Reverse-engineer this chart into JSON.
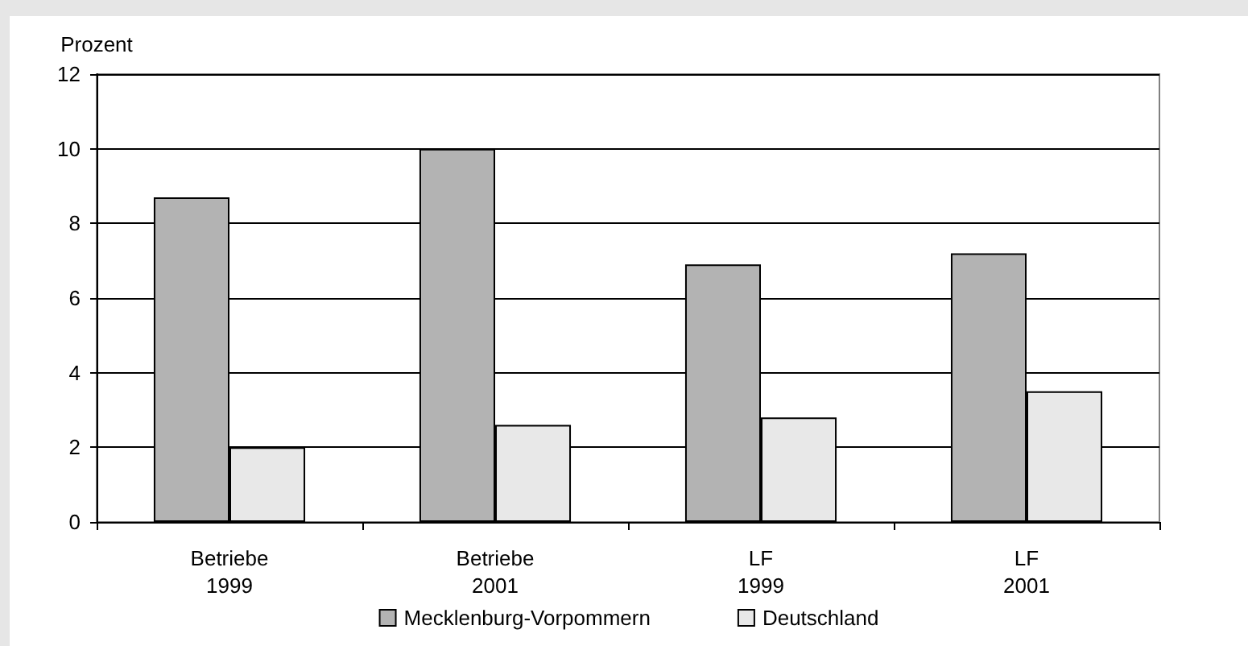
{
  "chart_data": {
    "type": "bar",
    "ylabel": "Prozent",
    "categories": [
      "Betriebe\n1999",
      "Betriebe\n2001",
      "LF\n1999",
      "LF\n2001"
    ],
    "series": [
      {
        "name": "Mecklenburg-Vorpommern",
        "color": "#b3b3b3",
        "values": [
          8.7,
          10.0,
          6.9,
          7.2
        ]
      },
      {
        "name": "Deutschland",
        "color": "#e8e8e8",
        "values": [
          2.0,
          2.6,
          2.8,
          3.5
        ]
      }
    ],
    "ylim": [
      0,
      12
    ],
    "yticks": [
      0,
      2,
      4,
      6,
      8,
      10,
      12
    ],
    "grid": "y",
    "legend": "bottom"
  }
}
